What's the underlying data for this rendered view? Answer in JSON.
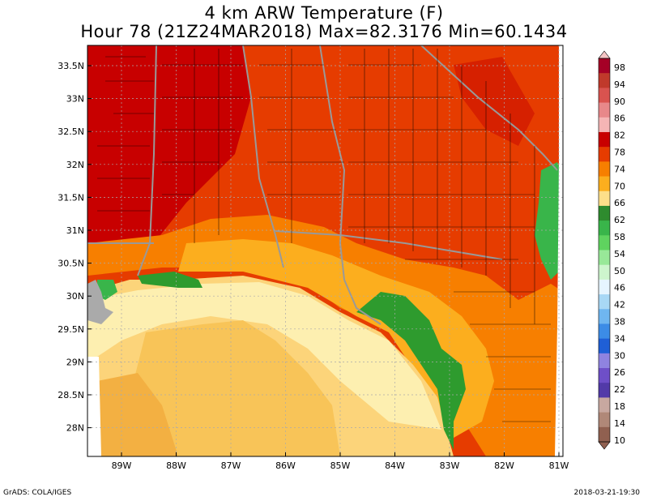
{
  "title_line1": "4 km ARW Temperature (F)",
  "title_line2": "Hour 78 (21Z24MAR2018) Max=82.3176 Min=60.1434",
  "footer_left": "GrADS: COLA/IGES",
  "footer_right": "2018-03-21-19:30",
  "lat_labels": [
    "33.5N",
    "33N",
    "32.5N",
    "32N",
    "31.5N",
    "31N",
    "30.5N",
    "30N",
    "29.5N",
    "29N",
    "28.5N",
    "28N"
  ],
  "lon_labels": [
    "89W",
    "88W",
    "87W",
    "86W",
    "85W",
    "84W",
    "83W",
    "82W",
    "81W"
  ],
  "colorbar": {
    "labels": [
      "98",
      "94",
      "90",
      "86",
      "82",
      "78",
      "74",
      "70",
      "66",
      "62",
      "58",
      "54",
      "50",
      "46",
      "42",
      "38",
      "34",
      "30",
      "26",
      "22",
      "18",
      "14",
      "10"
    ],
    "colors": [
      "#a50026",
      "#c0392b",
      "#d9534f",
      "#e8888a",
      "#f5b5b5",
      "#c80000",
      "#e63c00",
      "#f77f00",
      "#fcae1e",
      "#fddf8a",
      "#2e8b2e",
      "#39b54a",
      "#5fd35f",
      "#98e898",
      "#cdf5cd",
      "#e6f5ff",
      "#a8d8f5",
      "#6fb6f0",
      "#3c8ce6",
      "#1f5fd6",
      "#8f83e0",
      "#6e4fc8",
      "#523aa8",
      "#c8a8a0",
      "#b08878",
      "#906050"
    ]
  },
  "palette": {
    "hot": "#c80000",
    "warm": "#e63c00",
    "orange": "#f77f00",
    "lightorange": "#fcae1e",
    "pale": "#fddf8a",
    "cream": "#fdf3c0",
    "green": "#2e9b2e",
    "border": "#999999",
    "county": "#000000"
  }
}
